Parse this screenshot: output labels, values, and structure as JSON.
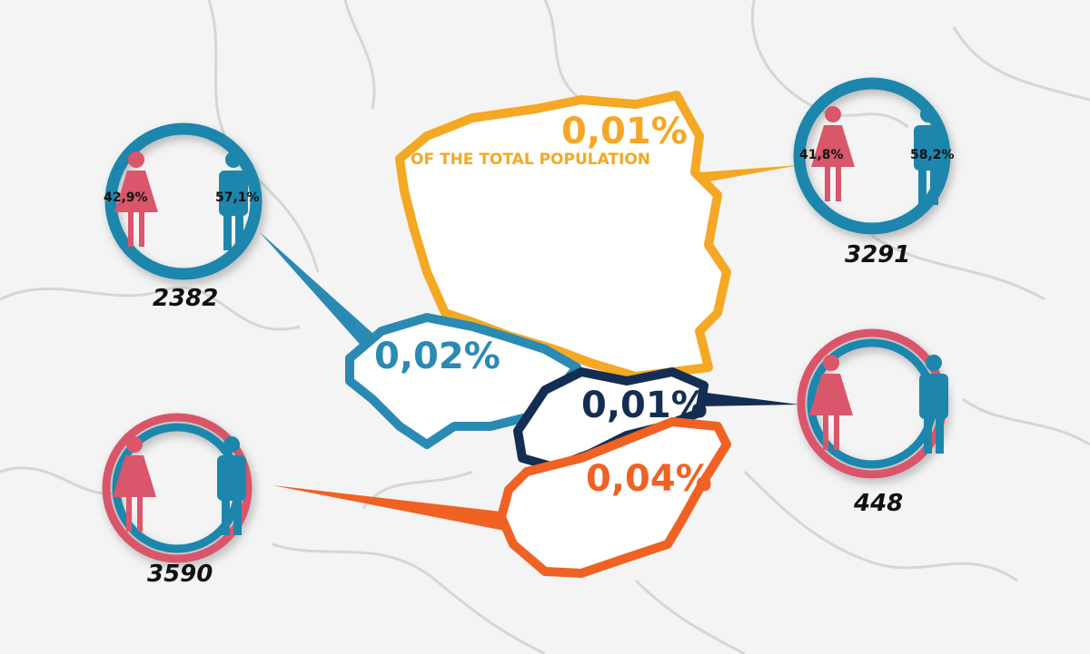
{
  "colors": {
    "female": "#d9566b",
    "male": "#1e86ad",
    "poland": "#f4a823",
    "czechia": "#2a8ab4",
    "slovakia": "#142d52",
    "hungary": "#ef6223"
  },
  "regions": [
    {
      "name": "poland",
      "share": "0,01%",
      "subtitle": "OF THE TOTAL POPULATION"
    },
    {
      "name": "czechia",
      "share": "0,02%"
    },
    {
      "name": "slovakia",
      "share": "0,01%"
    },
    {
      "name": "hungary",
      "share": "0,04%"
    }
  ],
  "circles": [
    {
      "region": "czechia",
      "count": "2382",
      "female": "42,9%",
      "male": "57,1%",
      "female_share": 42.9
    },
    {
      "region": "poland",
      "count": "3291",
      "female": "41,8%",
      "male": "58,2%",
      "female_share": 41.8
    },
    {
      "region": "slovakia",
      "count": "448"
    },
    {
      "region": "hungary",
      "count": "3590"
    }
  ]
}
